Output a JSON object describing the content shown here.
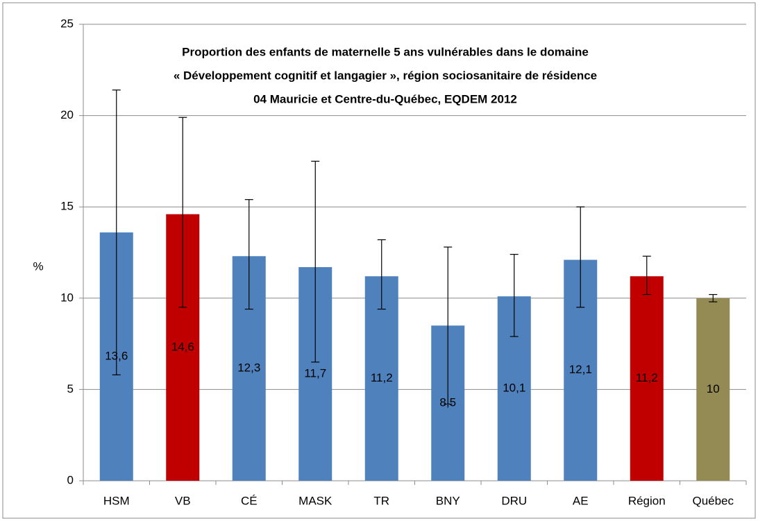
{
  "chart_data": {
    "type": "bar",
    "title": [
      "Proportion des enfants de maternelle 5 ans vulnérables dans le domaine",
      "« Développement cognitif et langagier », région sociosanitaire de résidence",
      "04 Mauricie et Centre-du-Québec, EQDEM 2012"
    ],
    "ylabel": "%",
    "categories": [
      "HSM",
      "VB",
      "CÉ",
      "MASK",
      "TR",
      "BNY",
      "DRU",
      "AE",
      "Région",
      "Québec"
    ],
    "values": [
      13.6,
      14.6,
      12.3,
      11.7,
      11.2,
      8.5,
      10.1,
      12.1,
      11.2,
      10
    ],
    "value_labels": [
      "13,6",
      "14,6",
      "12,3",
      "11,7",
      "11,2",
      "8,5",
      "10,1",
      "12,1",
      "11,2",
      "10"
    ],
    "ci_lower": [
      5.8,
      9.5,
      9.4,
      6.5,
      9.4,
      4.2,
      7.9,
      9.5,
      10.2,
      9.8
    ],
    "ci_upper": [
      21.4,
      19.9,
      15.4,
      17.5,
      13.2,
      12.8,
      12.4,
      15.0,
      12.3,
      10.2
    ],
    "colors": [
      "#4f81bd",
      "#c00000",
      "#4f81bd",
      "#4f81bd",
      "#4f81bd",
      "#4f81bd",
      "#4f81bd",
      "#4f81bd",
      "#c00000",
      "#948a54"
    ],
    "ylim": [
      0,
      25
    ],
    "yticks": [
      0,
      5,
      10,
      15,
      20,
      25
    ],
    "grid": true
  }
}
